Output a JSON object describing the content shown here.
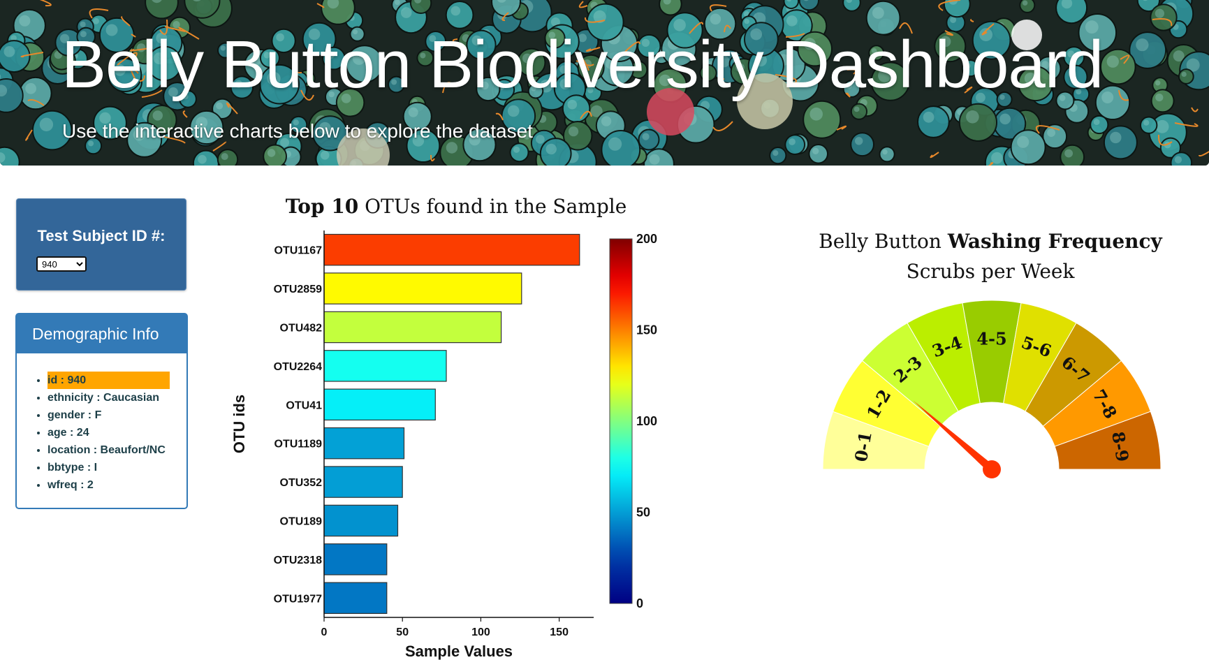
{
  "header": {
    "title": "Belly Button Biodiversity Dashboard",
    "subtitle": "Use the interactive charts below to explore the dataset"
  },
  "selector": {
    "label": "Test Subject ID #:",
    "selected": "940"
  },
  "demographics": {
    "heading": "Demographic Info",
    "items": [
      {
        "key": "id",
        "value": "940",
        "text": "id : 940",
        "highlighted": true
      },
      {
        "key": "ethnicity",
        "value": "Caucasian",
        "text": "ethnicity : Caucasian"
      },
      {
        "key": "gender",
        "value": "F",
        "text": "gender : F"
      },
      {
        "key": "age",
        "value": "24",
        "text": "age : 24"
      },
      {
        "key": "location",
        "value": "Beaufort/NC",
        "text": "location : Beaufort/NC"
      },
      {
        "key": "bbtype",
        "value": "I",
        "text": "bbtype : I"
      },
      {
        "key": "wfreq",
        "value": "2",
        "text": "wfreq : 2"
      }
    ],
    "highlight_color": "#ffa500"
  },
  "chart_data": [
    {
      "type": "bar",
      "orientation": "horizontal",
      "title_bold": "Top 10",
      "title_rest": " OTUs found in the Sample",
      "xlabel": "Sample Values",
      "ylabel": "OTU ids",
      "categories": [
        "OTU1167",
        "OTU2859",
        "OTU482",
        "OTU2264",
        "OTU41",
        "OTU1189",
        "OTU352",
        "OTU189",
        "OTU2318",
        "OTU1977"
      ],
      "values": [
        163,
        126,
        113,
        78,
        71,
        51,
        50,
        47,
        40,
        40
      ],
      "xlim": [
        0,
        172
      ],
      "xticks": [
        0,
        50,
        100,
        150
      ],
      "colorscale": "jet",
      "colorbar": {
        "range": [
          0,
          200
        ],
        "ticks": [
          0,
          50,
          100,
          150,
          200
        ]
      },
      "grid": false
    },
    {
      "type": "gauge",
      "title_parts": [
        "Belly Button ",
        "Washing Frequency"
      ],
      "subtitle": "Scrubs per Week",
      "sectors": [
        "0-1",
        "1-2",
        "2-3",
        "3-4",
        "4-5",
        "5-6",
        "6-7",
        "7-8",
        "8-9"
      ],
      "sector_colors": [
        "#ffff99",
        "#ffff33",
        "#ccff33",
        "#bbee00",
        "#99cc00",
        "#e0e000",
        "#cc9900",
        "#ff9900",
        "#cc6600"
      ],
      "value": 2,
      "range": [
        0,
        9
      ],
      "needle_color": "#ff3300"
    }
  ]
}
